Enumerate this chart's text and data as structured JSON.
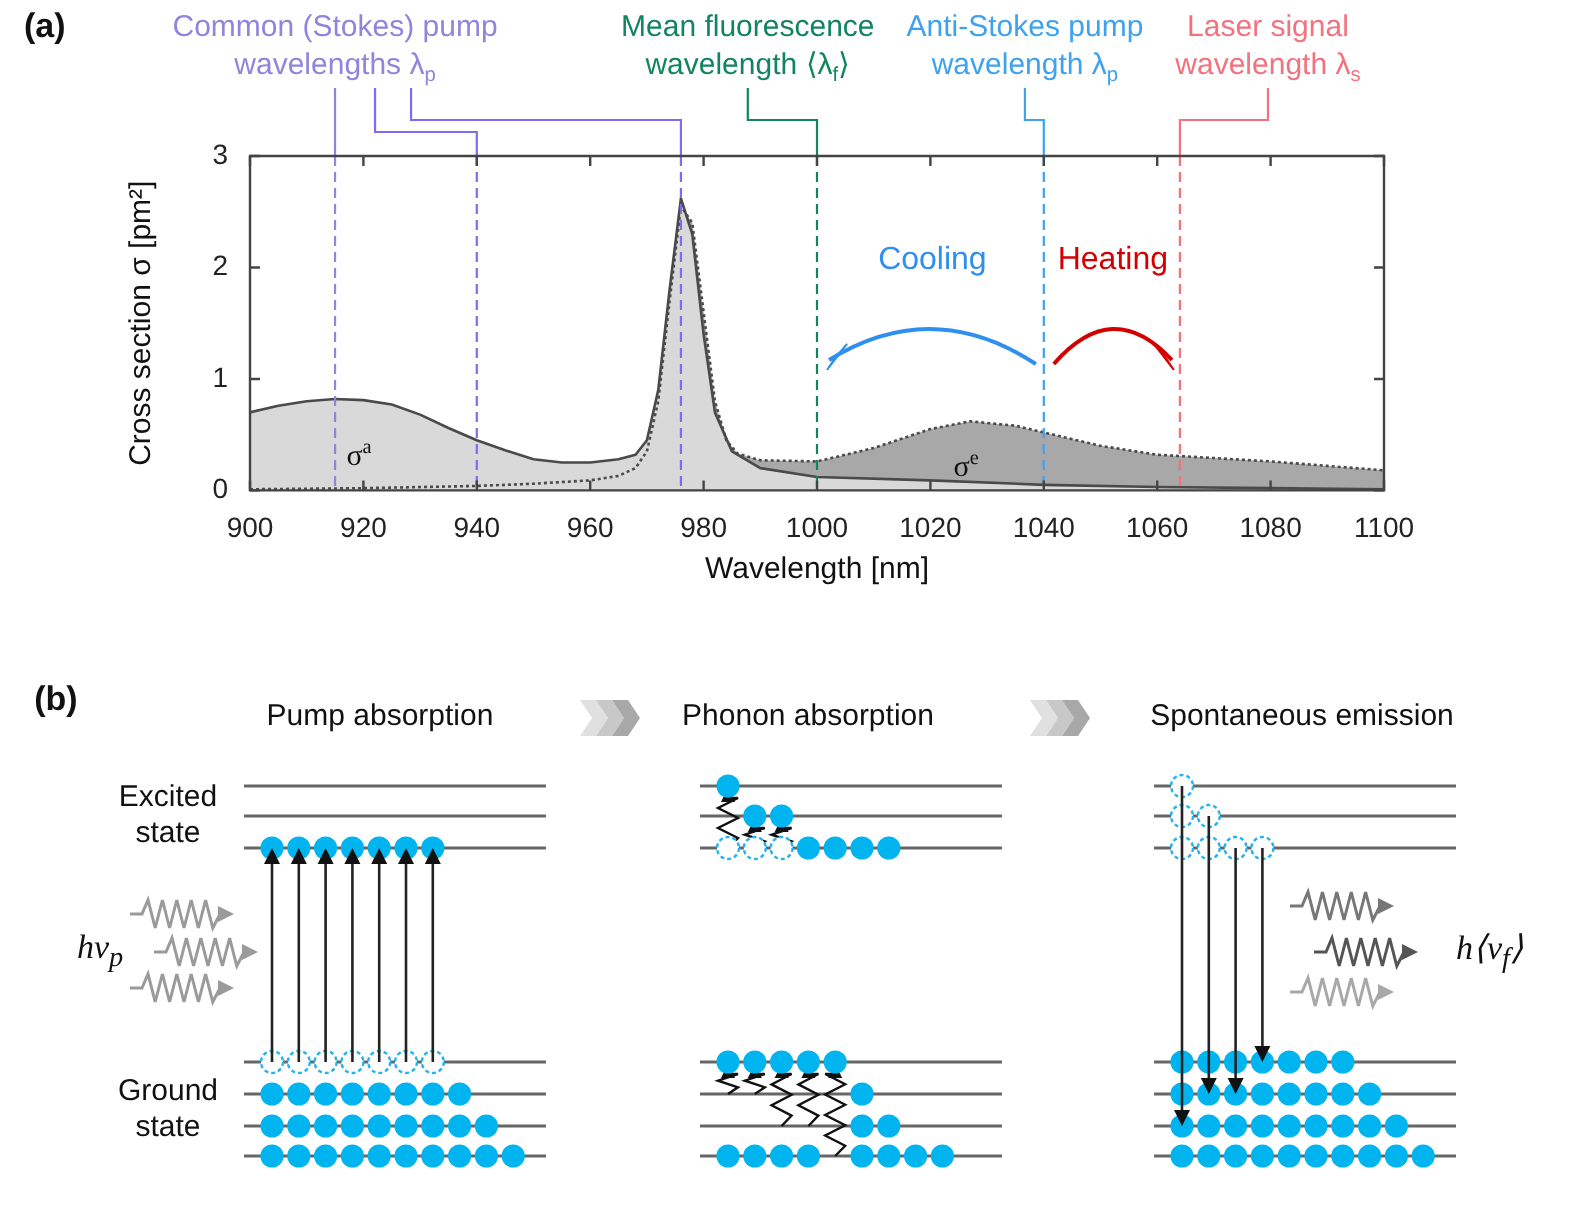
{
  "chart_data": [
    {
      "type": "area",
      "title": "(a)",
      "xlabel": "Wavelength [nm]",
      "ylabel": "Cross section σ [pm²]",
      "xlim": [
        900,
        1100
      ],
      "xticks": [
        900,
        920,
        940,
        960,
        980,
        1000,
        1020,
        1040,
        1060,
        1080,
        1100
      ],
      "ylim": [
        0,
        3
      ],
      "yticks": [
        0,
        1,
        2,
        3
      ],
      "series": [
        {
          "name": "σ$^{a}$",
          "color": "#d9d9d9",
          "line_style": "solid",
          "x": [
            900,
            905,
            910,
            915,
            920,
            925,
            930,
            935,
            940,
            945,
            950,
            955,
            960,
            965,
            968,
            970,
            972,
            974,
            976,
            978,
            980,
            982,
            985,
            990,
            1000,
            1020,
            1040,
            1060,
            1080,
            1100
          ],
          "values": [
            0.7,
            0.76,
            0.8,
            0.82,
            0.81,
            0.77,
            0.68,
            0.56,
            0.45,
            0.36,
            0.28,
            0.25,
            0.25,
            0.28,
            0.32,
            0.45,
            0.9,
            1.8,
            2.62,
            2.3,
            1.4,
            0.7,
            0.35,
            0.2,
            0.12,
            0.09,
            0.05,
            0.03,
            0.02,
            0.01
          ]
        },
        {
          "name": "σ$^{e}$",
          "color": "#a8a8a8",
          "line_style": "dotted",
          "x": [
            900,
            920,
            940,
            950,
            960,
            965,
            968,
            970,
            972,
            974,
            976,
            978,
            980,
            982,
            984,
            986,
            990,
            1000,
            1010,
            1020,
            1027,
            1035,
            1040,
            1050,
            1060,
            1070,
            1080,
            1090,
            1100
          ],
          "values": [
            0.01,
            0.02,
            0.04,
            0.06,
            0.09,
            0.13,
            0.2,
            0.35,
            0.8,
            1.7,
            2.55,
            2.4,
            1.6,
            0.8,
            0.45,
            0.33,
            0.27,
            0.26,
            0.38,
            0.55,
            0.62,
            0.58,
            0.52,
            0.4,
            0.32,
            0.29,
            0.26,
            0.22,
            0.18
          ]
        }
      ],
      "ref_lines": [
        {
          "axis": "x",
          "value": 915,
          "label": "Common (Stokes) pump\nwavelengths λ$_{p}$",
          "color": "#8f85dc",
          "line_style": "dashed"
        },
        {
          "axis": "x",
          "value": 940,
          "color": "#7b6cf2",
          "line_style": "dashed"
        },
        {
          "axis": "x",
          "value": 976,
          "color": "#7b6cf2",
          "line_style": "dashed"
        },
        {
          "axis": "x",
          "value": 1000,
          "label": "Mean fluorescence\nwavelength ⟨λ$_{f}$⟩",
          "color": "#12855c",
          "line_style": "dashed"
        },
        {
          "axis": "x",
          "value": 1040,
          "label": "Anti-Stokes pump\nwavelength λ$_{p}$",
          "color": "#3ea2ee",
          "line_style": "dashed"
        },
        {
          "axis": "x",
          "value": 1064,
          "label": "Laser signal\nwavelength λ$_{s}$",
          "color": "#f2727e",
          "line_style": "dashed"
        }
      ],
      "annotations": [
        "Cooling",
        "Heating"
      ]
    },
    {
      "type": "other",
      "title": "(b)",
      "annotations": [
        "Pump absorption",
        "Phonon absorption",
        "Spontaneous emission",
        "Excited state",
        "Ground state",
        "hν$_{p}$",
        "h⟨ν$_{f}$⟩"
      ]
    }
  ]
}
